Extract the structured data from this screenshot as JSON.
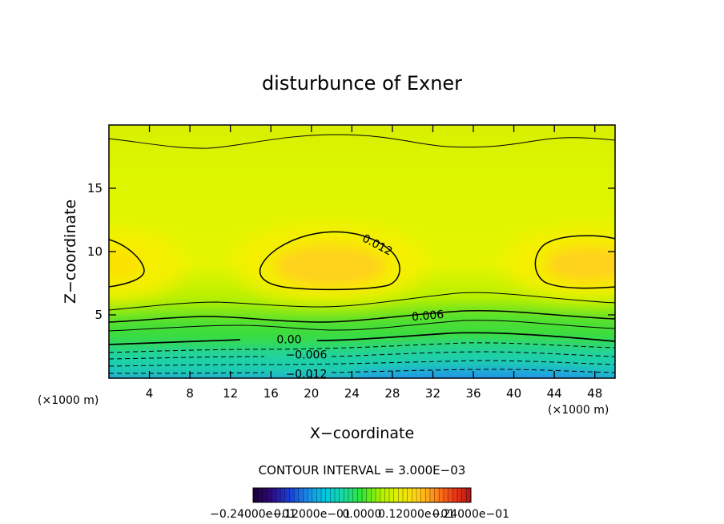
{
  "chart_data": {
    "type": "contour",
    "title": "disturbunce of Exner",
    "xlabel": "X−coordinate",
    "ylabel": "Z−coordinate",
    "x_unit": "(×1000 m)",
    "z_unit": "(×1000 m)",
    "xlim": [
      0,
      50
    ],
    "ylim": [
      0,
      20
    ],
    "x_ticks": [
      4,
      8,
      12,
      16,
      20,
      24,
      28,
      32,
      36,
      40,
      44,
      48
    ],
    "y_ticks": [
      5,
      10,
      15
    ],
    "grid": false,
    "contour_interval_text": "CONTOUR INTERVAL = 3.000E−03",
    "contour_interval": 0.003,
    "contour_labels": [
      {
        "text": "0.012",
        "x": 26.5,
        "z": 10.5,
        "angle": 28
      },
      {
        "text": "0.006",
        "x": 31.5,
        "z": 4.9,
        "angle": -5
      },
      {
        "text": "0.00",
        "x": 17.8,
        "z": 3.0,
        "angle": 0
      },
      {
        "text": "−0.006",
        "x": 19.5,
        "z": 1.8,
        "angle": 0
      },
      {
        "text": "−0.012",
        "x": 19.5,
        "z": 0.3,
        "angle": 0
      }
    ],
    "colorbar": {
      "min": -0.024,
      "max": 0.024,
      "labels": [
        "−0.24000e−01",
        "−0.12000e−01",
        "0.0000",
        "0.12000e−01",
        "0.24000e−01"
      ],
      "colors": [
        "#1a0033",
        "#2e0a80",
        "#1a3fd6",
        "#1a8ce6",
        "#00c8e0",
        "#19d9a0",
        "#33e633",
        "#aaf000",
        "#e6f000",
        "#ffd21a",
        "#ff8c1a",
        "#f03c14",
        "#b41414"
      ]
    }
  }
}
